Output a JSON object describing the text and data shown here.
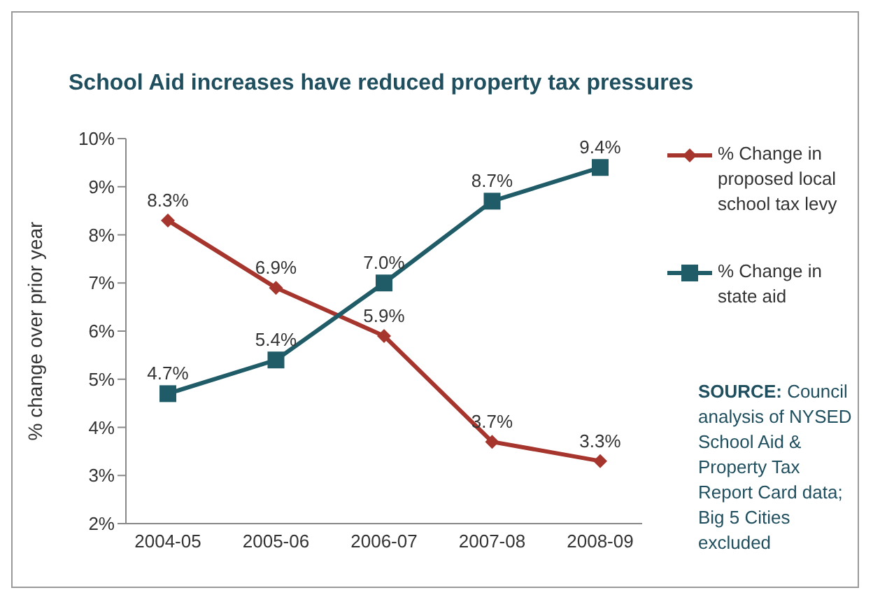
{
  "chart_data": {
    "type": "line",
    "title": "School Aid increases have reduced property tax pressures",
    "ylabel": "% change over prior year",
    "categories": [
      "2004-05",
      "2005-06",
      "2006-07",
      "2007-08",
      "2008-09"
    ],
    "series": [
      {
        "name": "% Change in proposed local school tax levy",
        "color": "#a5352d",
        "marker": "diamond",
        "values": [
          8.3,
          6.9,
          5.9,
          3.7,
          3.3
        ],
        "value_labels": [
          "8.3%",
          "6.9%",
          "5.9%",
          "3.7%",
          "3.3%"
        ]
      },
      {
        "name": "% Change in state aid",
        "color": "#1f5c68",
        "marker": "square",
        "values": [
          4.7,
          5.4,
          7.0,
          8.7,
          9.4
        ],
        "value_labels": [
          "4.7%",
          "5.4%",
          "7.0%",
          "8.7%",
          "9.4%"
        ]
      }
    ],
    "ylim": [
      2,
      10
    ],
    "yticks": [
      {
        "value": 2,
        "label": "2%"
      },
      {
        "value": 3,
        "label": "3%"
      },
      {
        "value": 4,
        "label": "4%"
      },
      {
        "value": 5,
        "label": "5%"
      },
      {
        "value": 6,
        "label": "6%"
      },
      {
        "value": 7,
        "label": "7%"
      },
      {
        "value": 8,
        "label": "8%"
      },
      {
        "value": 9,
        "label": "9%"
      },
      {
        "value": 10,
        "label": "10%"
      }
    ],
    "grid": false,
    "legend": "right",
    "line_style": "solid",
    "annotations": [
      "SOURCE: Council analysis of NYSED School Aid & Property Tax Report Card data; Big 5 Cities excluded"
    ]
  }
}
